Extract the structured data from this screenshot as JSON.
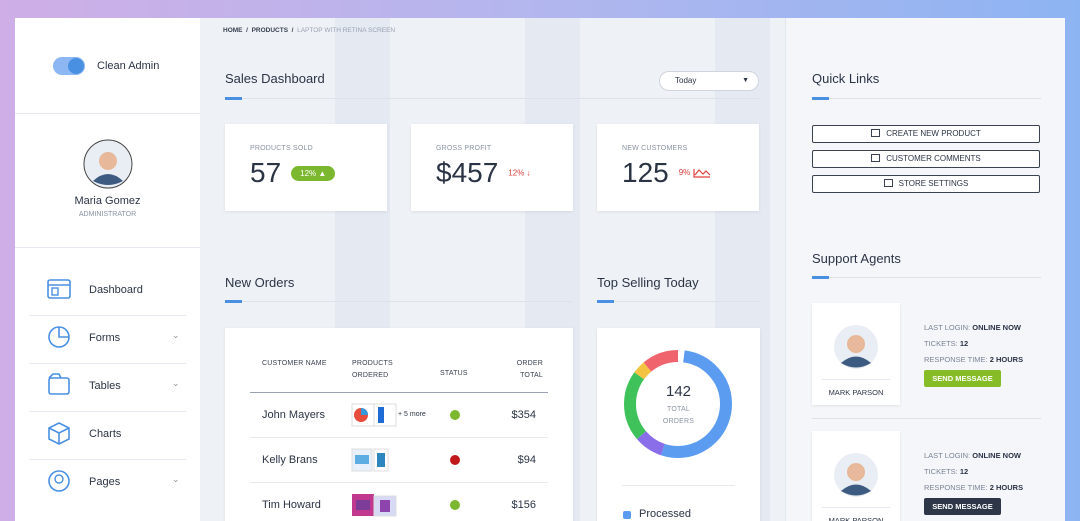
{
  "brand": {
    "name": "Clean Admin"
  },
  "profile": {
    "name": "Maria Gomez",
    "role": "ADMINISTRATOR"
  },
  "nav": [
    "Dashboard",
    "Forms",
    "Tables",
    "Charts",
    "Pages"
  ],
  "breadcrumb": {
    "items": [
      "HOME",
      "PRODUCTS",
      "LAPTOP WITH RETINA SCREEN"
    ],
    "separator": "/"
  },
  "sales": {
    "title": "Sales Dashboard",
    "period": "Today",
    "kpis": [
      {
        "label": "PRODUCTS SOLD",
        "value": "57",
        "change": "12%"
      },
      {
        "label": "GROSS PROFIT",
        "value": "$457",
        "change": "12%"
      },
      {
        "label": "NEW CUSTOMERS",
        "value": "125",
        "change": "9%"
      }
    ]
  },
  "orders": {
    "title": "New Orders",
    "columns": [
      "CUSTOMER NAME",
      "PRODUCTS ORDERED",
      "STATUS",
      "ORDER TOTAL"
    ],
    "rows": [
      {
        "customer": "John Mayers",
        "more": "+ 5 more",
        "total": "$354"
      },
      {
        "customer": "Kelly Brans",
        "total": "$94"
      },
      {
        "customer": "Tim Howard",
        "total": "$156"
      }
    ]
  },
  "top_selling": {
    "title": "Top Selling Today",
    "total": "142",
    "total_label": "TOTAL ORDERS",
    "legend": [
      "Processed"
    ]
  },
  "quick_links": {
    "title": "Quick Links",
    "links": [
      "CREATE NEW PRODUCT",
      "CUSTOMER COMMENTS",
      "STORE SETTINGS"
    ]
  },
  "support": {
    "title": "Support Agents",
    "labels": {
      "last_login": "LAST LOGIN:",
      "tickets": "TICKETS:",
      "response": "RESPONSE TIME:"
    },
    "agents": [
      {
        "name": "MARK PARSON",
        "last_login": "ONLINE NOW",
        "tickets": "12",
        "response": "2 HOURS",
        "button": "SEND MESSAGE"
      },
      {
        "name": "MARK PARSON",
        "last_login": "ONLINE NOW",
        "tickets": "12",
        "response": "2 HOURS",
        "button": "SEND MESSAGE"
      }
    ]
  }
}
